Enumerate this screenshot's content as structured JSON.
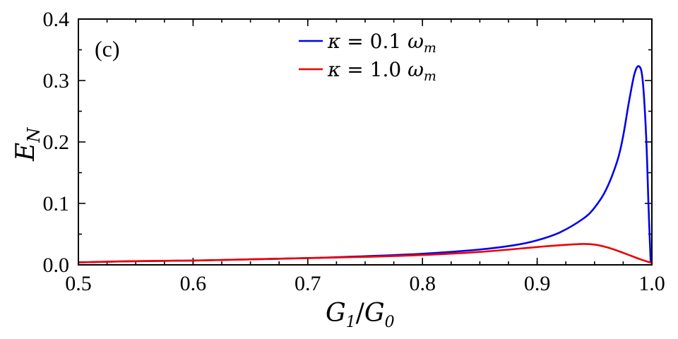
{
  "chart_data": {
    "type": "line",
    "panel_label": "(c)",
    "xlabel": {
      "main": "G",
      "sub1": "1",
      "slash": "/",
      "main2": "G",
      "sub2": "0"
    },
    "ylabel": {
      "main": "E",
      "sub": "N"
    },
    "xlim": [
      0.5,
      1.0
    ],
    "ylim": [
      0.0,
      0.4
    ],
    "xticks": [
      0.5,
      0.6,
      0.7,
      0.8,
      0.9,
      1.0
    ],
    "xtick_labels": [
      "0.5",
      "0.6",
      "0.7",
      "0.8",
      "0.9",
      "1.0"
    ],
    "yticks": [
      0.0,
      0.1,
      0.2,
      0.3,
      0.4
    ],
    "ytick_labels": [
      "0.0",
      "0.1",
      "0.2",
      "0.3",
      "0.4"
    ],
    "legend_position": "top-center",
    "series": [
      {
        "name": "κ = 0.1 ω_m",
        "legend": {
          "kappa": "κ",
          "eq": " = 0.1 ",
          "omega": "ω",
          "sub": "m"
        },
        "color": "#0000ee",
        "x": [
          0.5,
          0.55,
          0.6,
          0.65,
          0.7,
          0.75,
          0.8,
          0.85,
          0.88,
          0.9,
          0.92,
          0.94,
          0.95,
          0.96,
          0.97,
          0.975,
          0.98,
          0.985,
          0.989,
          0.992,
          0.995,
          0.997,
          0.998,
          0.999
        ],
        "values": [
          0.004,
          0.006,
          0.007,
          0.009,
          0.011,
          0.014,
          0.018,
          0.025,
          0.032,
          0.04,
          0.053,
          0.075,
          0.093,
          0.122,
          0.17,
          0.21,
          0.265,
          0.312,
          0.323,
          0.3,
          0.21,
          0.1,
          0.05,
          0.003
        ]
      },
      {
        "name": "κ = 1.0 ω_m",
        "legend": {
          "kappa": "κ",
          "eq": " = 1.0 ",
          "omega": "ω",
          "sub": "m"
        },
        "color": "#ee0000",
        "x": [
          0.5,
          0.55,
          0.6,
          0.65,
          0.7,
          0.75,
          0.8,
          0.85,
          0.9,
          0.92,
          0.94,
          0.95,
          0.96,
          0.97,
          0.98,
          0.99,
          1.0
        ],
        "values": [
          0.004,
          0.006,
          0.007,
          0.009,
          0.011,
          0.013,
          0.016,
          0.021,
          0.029,
          0.032,
          0.034,
          0.033,
          0.029,
          0.023,
          0.016,
          0.009,
          0.003
        ]
      }
    ]
  }
}
